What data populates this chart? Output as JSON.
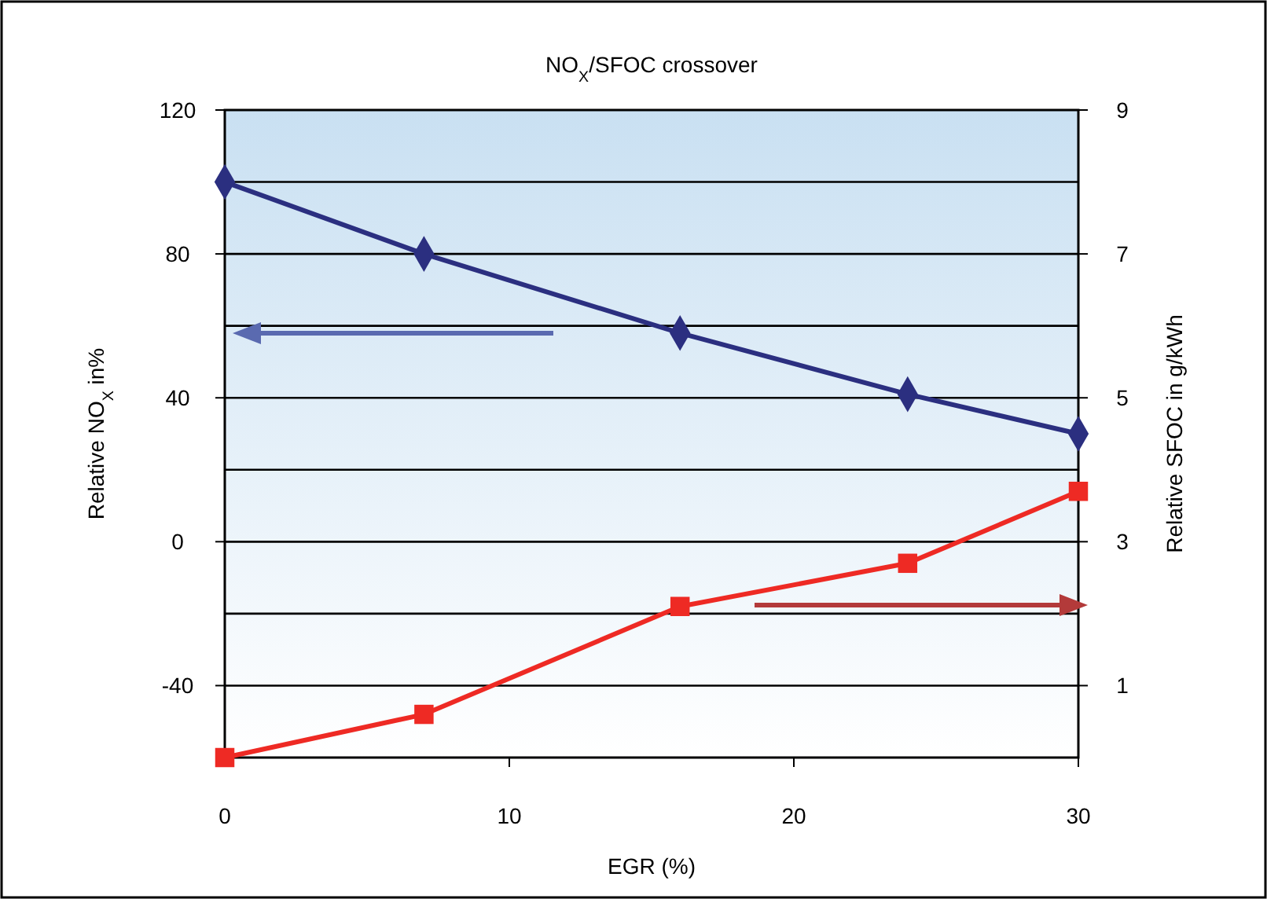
{
  "chart_data": {
    "type": "line",
    "title": "NO$_{X}$/SFOC crossover",
    "xlabel": "EGR (%)",
    "ylabel": "Relative NO$_{X}$ in%",
    "y2label": "Relative SFOC in g/kWh",
    "xlim": [
      0,
      30
    ],
    "xticks": [
      0,
      10,
      20,
      30
    ],
    "ylim": [
      -60,
      120
    ],
    "yticks": [
      -40,
      0,
      40,
      80,
      120
    ],
    "y2lim": [
      0,
      9
    ],
    "y2ticks": [
      1,
      3,
      5,
      7,
      9
    ],
    "grid": "y",
    "series": [
      {
        "color": "#2b2f80",
        "x": [
          0,
          7,
          16,
          24,
          30
        ],
        "values": [
          100,
          80,
          58,
          41,
          30
        ],
        "marker": "diamond",
        "axis": "y"
      },
      {
        "color": "#ee2a24",
        "x": [
          0,
          7,
          16,
          24,
          30
        ],
        "values": [
          0,
          0.6,
          2.1,
          2.7,
          3.7
        ],
        "marker": "square",
        "axis": "y2"
      }
    ]
  }
}
